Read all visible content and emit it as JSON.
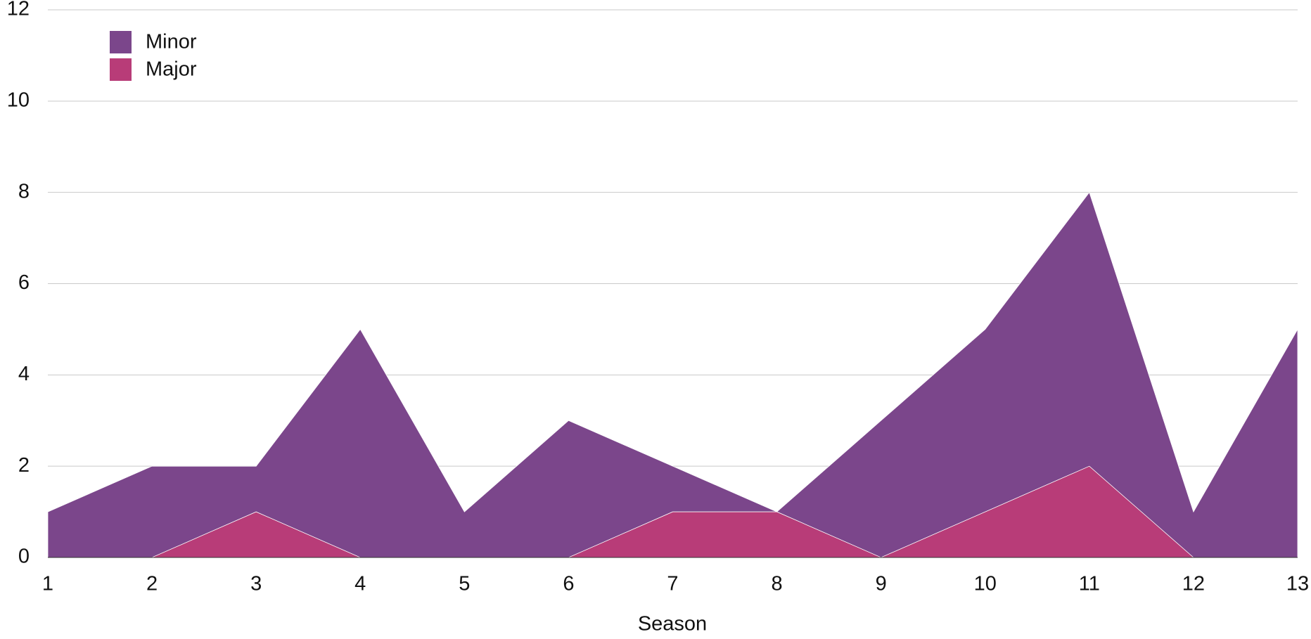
{
  "chart_data": {
    "type": "area",
    "x_label": "Season",
    "x": [
      1,
      2,
      3,
      4,
      5,
      6,
      7,
      8,
      9,
      10,
      11,
      12,
      13
    ],
    "series": [
      {
        "name": "Minor",
        "color": "#7b468b",
        "values": [
          1,
          2,
          2,
          5,
          1,
          3,
          2,
          1,
          3,
          5,
          8,
          1,
          5
        ]
      },
      {
        "name": "Major",
        "color": "#b83c78",
        "values": [
          0,
          0,
          1,
          0,
          0,
          0,
          1,
          1,
          0,
          1,
          2,
          0,
          0
        ]
      }
    ],
    "xlim": [
      1,
      13
    ],
    "xticks": [
      1,
      2,
      3,
      4,
      5,
      6,
      7,
      8,
      9,
      10,
      11,
      12,
      13
    ],
    "ylim": [
      0,
      12
    ],
    "yticks": [
      0,
      2,
      4,
      6,
      8,
      10,
      12
    ],
    "grid": true,
    "legend": "top-left"
  }
}
